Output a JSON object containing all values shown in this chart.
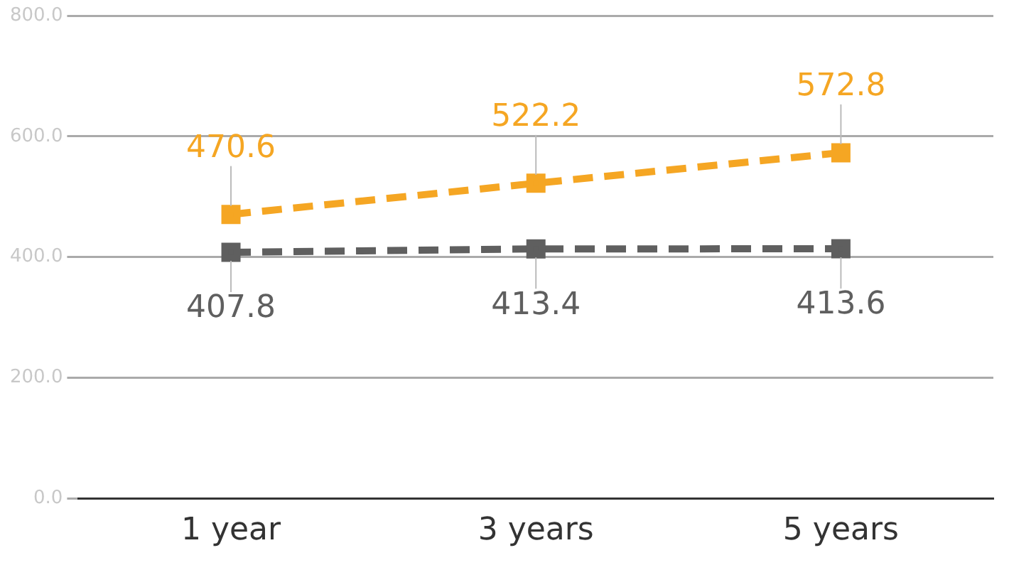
{
  "chart_data": {
    "type": "line",
    "categories": [
      "1 year",
      "3 years",
      "5 years"
    ],
    "series": [
      {
        "color": "#f5a623",
        "values": [
          470.6,
          522.2,
          572.8
        ]
      },
      {
        "color": "#5f5f5f",
        "values": [
          407.8,
          413.4,
          413.6
        ]
      }
    ],
    "ylim": [
      0,
      800
    ],
    "yticks": [
      {
        "value": 0,
        "label": "0.0"
      },
      {
        "value": 200,
        "label": "200.0"
      },
      {
        "value": 400,
        "label": "400.0"
      },
      {
        "value": 600,
        "label": "600.0"
      },
      {
        "value": 800,
        "label": "800.0"
      }
    ],
    "grid": "y",
    "legend": false,
    "marker": "square",
    "line_style": "dashed",
    "data_labels": true
  }
}
